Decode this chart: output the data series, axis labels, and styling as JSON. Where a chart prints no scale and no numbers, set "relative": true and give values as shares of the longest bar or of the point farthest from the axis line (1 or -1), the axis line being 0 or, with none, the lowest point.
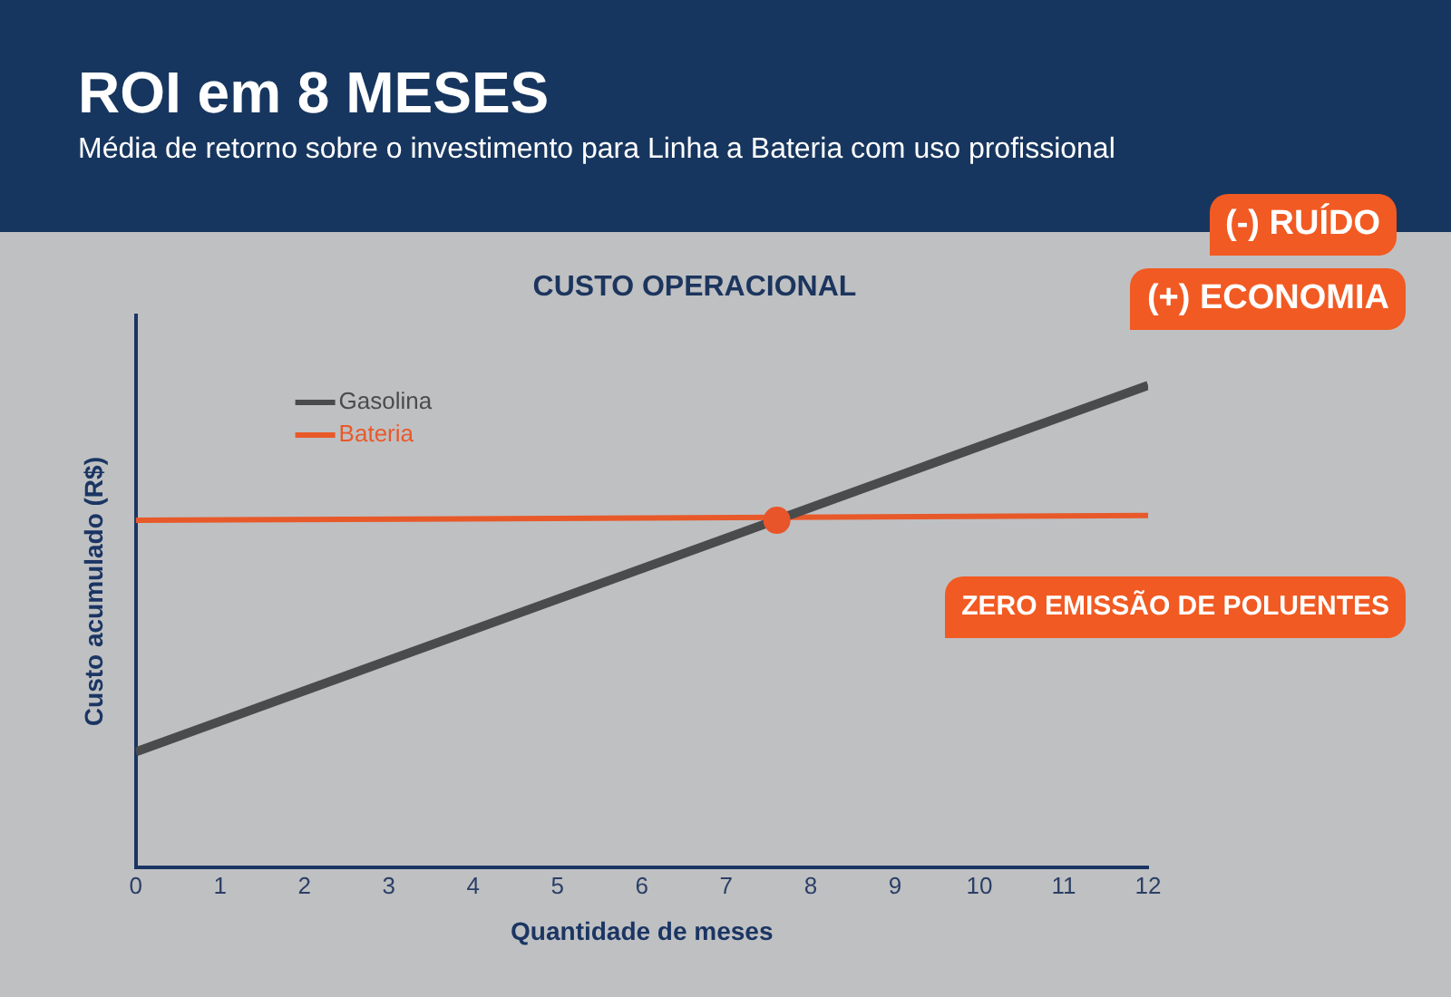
{
  "chart_data": {
    "type": "line",
    "title": "ROI em 8 MESES",
    "subtitle": "Média de retorno sobre o investimento para Linha a Bateria com uso profissional",
    "xlabel": "Quantidade de meses",
    "ylabel": "Custo acumulado (R$)",
    "annotations": [
      "CUSTO OPERACIONAL",
      "(-) RUÍDO",
      "(+) ECONOMIA",
      "ZERO EMISSÃO DE POLUENTES"
    ],
    "relative": true,
    "xlim": [
      0,
      12
    ],
    "xticks": [
      0,
      1,
      2,
      3,
      4,
      5,
      6,
      7,
      8,
      9,
      10,
      11,
      12
    ],
    "tick_labels": "x",
    "legend": "top left",
    "series": [
      {
        "name": "Gasolina",
        "color": "#4a4b4d",
        "x": [
          0,
          12
        ],
        "values": [
          0.24,
          1
        ]
      },
      {
        "name": "Bateria",
        "color": "#e8592a",
        "x": [
          0,
          12
        ],
        "values": [
          0.72,
          0.73
        ]
      },
      {
        "type": "scatter",
        "color": "#e8552a",
        "x": [
          7.6
        ],
        "values": [
          0.72
        ]
      }
    ]
  }
}
